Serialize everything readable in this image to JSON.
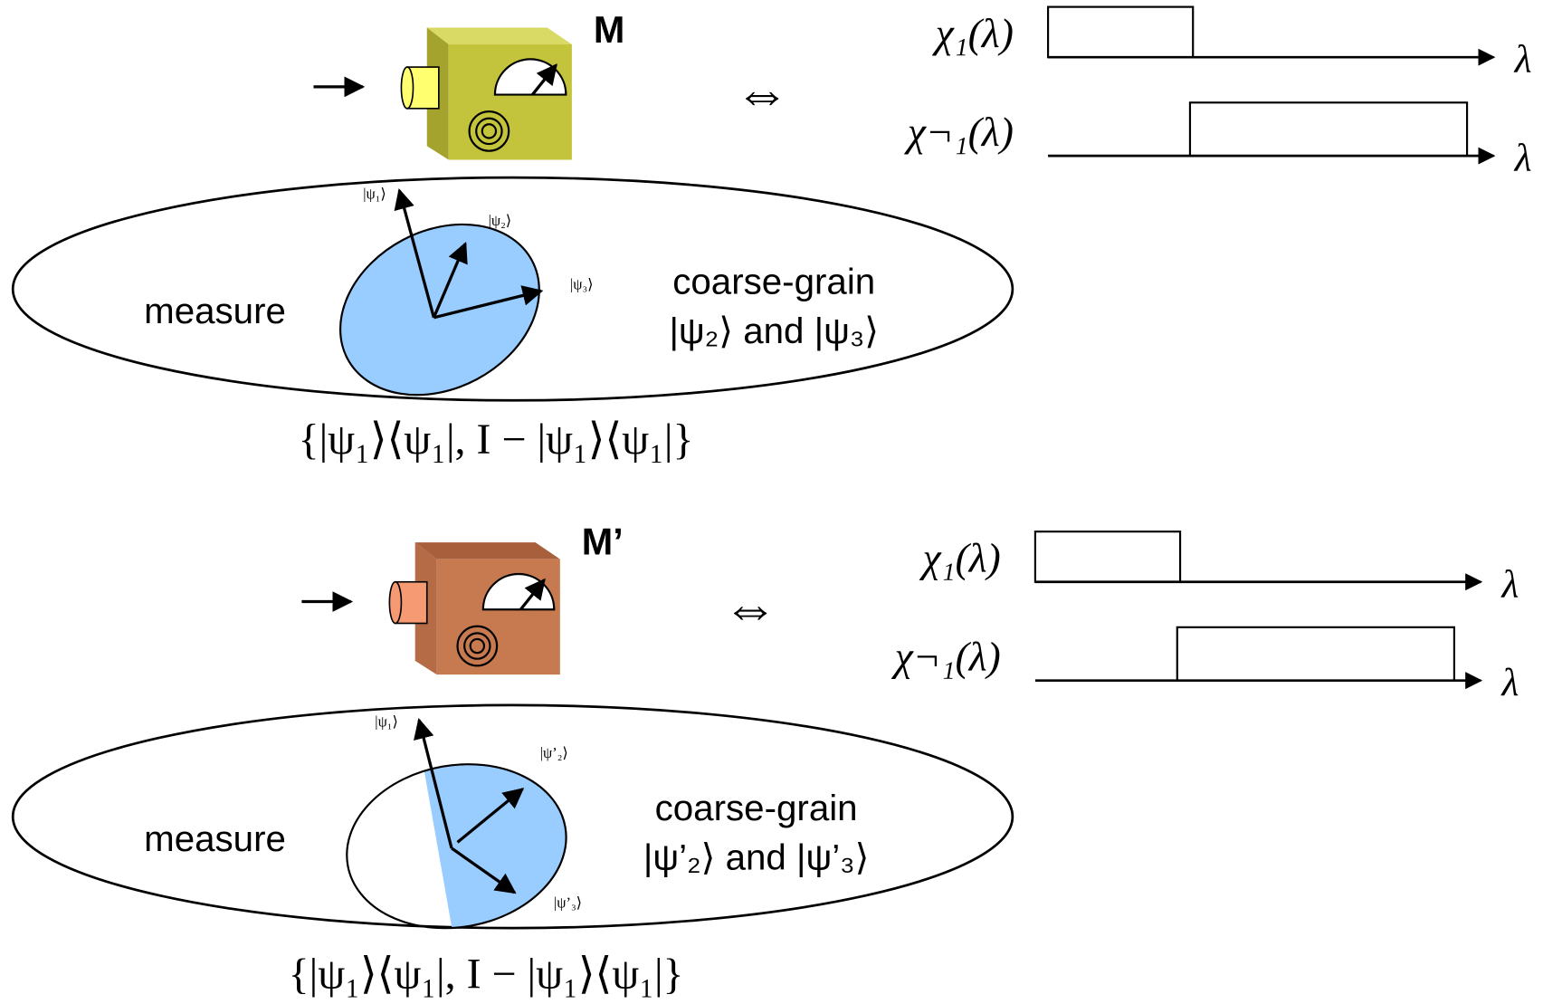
{
  "panels": [
    {
      "device_label": "M",
      "equivalence": "⇔",
      "plots": [
        {
          "label": "χ₁(λ)",
          "axis_label": "λ"
        },
        {
          "label": "χ¬₁(λ)",
          "axis_label": "λ"
        }
      ],
      "ellipse": {
        "left_text": "measure",
        "right_text": [
          "coarse-grain",
          "|ψ₂⟩ and |ψ₃⟩"
        ],
        "vector_labels": [
          "|ψ₁⟩",
          "|ψ₂⟩",
          "|ψ₃⟩"
        ]
      },
      "povm": "{|ψ₁⟩⟨ψ₁|, I − |ψ₁⟩⟨ψ₁|}"
    },
    {
      "device_label": "M’",
      "equivalence": "⇔",
      "plots": [
        {
          "label": "χ₁(λ)",
          "axis_label": "λ"
        },
        {
          "label": "χ¬₁(λ)",
          "axis_label": "λ"
        }
      ],
      "ellipse": {
        "left_text": "measure",
        "right_text": [
          "coarse-grain",
          "|ψ’₂⟩ and |ψ’₃⟩"
        ],
        "vector_labels": [
          "|ψ₁⟩",
          "|ψ’₂⟩",
          "|ψ’₃⟩"
        ]
      },
      "povm": "{|ψ₁⟩⟨ψ₁|, I − |ψ₁⟩⟨ψ₁|}"
    }
  ]
}
